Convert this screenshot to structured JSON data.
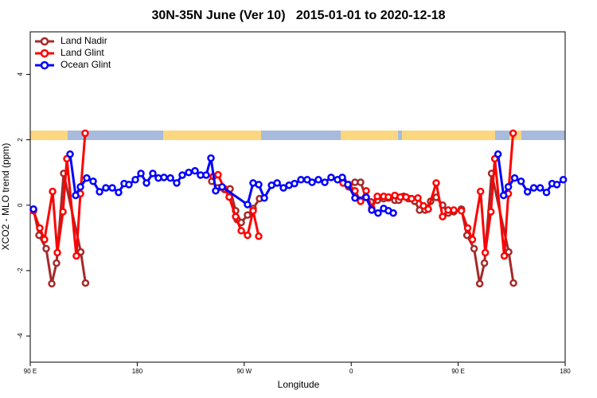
{
  "chart_data": {
    "type": "line",
    "title": "30N-35N June (Ver 10)   2015-01-01 to 2020-12-18",
    "x_label": "Longitude",
    "y_label": "XCO2 - MLO trend (ppm)",
    "xlim": [
      90,
      540
    ],
    "ylim": [
      -4.8,
      5.3
    ],
    "xticks": [
      {
        "value": 90,
        "label": "90 E"
      },
      {
        "value": 180,
        "label": "180"
      },
      {
        "value": 270,
        "label": "90 W"
      },
      {
        "value": 360,
        "label": "0"
      },
      {
        "value": 450,
        "label": "90 E"
      },
      {
        "value": 540,
        "label": "180"
      }
    ],
    "yticks": [
      -4,
      -2,
      0,
      2,
      4
    ],
    "legend": "top-left",
    "grid": false,
    "series": [
      {
        "name": "Land Nadir",
        "color": "#a52a2a",
        "x": [
          92.7,
          97.4,
          103.4,
          108.1,
          112.1,
          118.1,
          132.5,
          136.5,
          null,
          242.7,
          248,
          253.4,
          258.1,
          262.8,
          264.1,
          267.5,
          272.8,
          277.5,
          282.9,
          null,
          353.2,
          357.9,
          363.2,
          367.9,
          372.6,
          376.6,
          382,
          387.3,
          391.3,
          396.7,
          400,
          404.1,
          408.1,
          413.4,
          417.5,
          422.2,
          426.8,
          431.5,
          436.9,
          441.6,
          446.3,
          452.7,
          457.4,
          463.4,
          468.1,
          472.1,
          478.1,
          492.5,
          496.5
        ],
        "values": [
          -0.12,
          -0.92,
          -1.33,
          -2.4,
          -1.77,
          0.97,
          -1.43,
          -2.38,
          null,
          0.73,
          0.53,
          0.48,
          0.5,
          -0.17,
          -0.44,
          -0.53,
          -0.3,
          -0.1,
          0.2,
          null,
          0.75,
          0.56,
          0.7,
          0.7,
          0.24,
          0.1,
          0.15,
          0.2,
          0.22,
          0.15,
          0.15,
          0.27,
          0.2,
          0.12,
          -0.15,
          -0.15,
          0.12,
          0.24,
          0,
          -0.24,
          -0.2,
          -0.12,
          -0.92,
          -1.33,
          -2.4,
          -1.77,
          0.97,
          -1.43,
          -2.38
        ]
      },
      {
        "name": "Land Glint",
        "color": "#ff0000",
        "x": [
          92.7,
          98,
          102,
          108.8,
          112.8,
          117.5,
          120.8,
          128.8,
          132.2,
          136.2,
          null,
          244,
          248,
          253.4,
          257.4,
          262.8,
          267.5,
          272.8,
          277.5,
          282.2,
          null,
          353.2,
          357.9,
          363.2,
          367.9,
          372.6,
          377.3,
          382,
          387.3,
          391.3,
          396.7,
          401.4,
          406.1,
          410.8,
          416.1,
          420.8,
          424.8,
          431.5,
          436.9,
          441.6,
          446.3,
          452.7,
          458,
          462,
          468.8,
          472.8,
          477.5,
          480.8,
          488.8,
          492.2,
          496.2
        ],
        "values": [
          -0.17,
          -0.7,
          -1.05,
          0.42,
          -1.45,
          -0.2,
          1.42,
          -1.55,
          0.35,
          2.2,
          null,
          0.88,
          0.93,
          0.5,
          0.25,
          -0.35,
          -0.78,
          -0.92,
          -0.17,
          -0.95,
          null,
          0.68,
          0.63,
          0.44,
          0.12,
          0.44,
          -0.1,
          0.27,
          0.27,
          0.25,
          0.3,
          0.25,
          0.25,
          0.2,
          0.22,
          -0.02,
          -0.12,
          0.68,
          -0.35,
          -0.15,
          -0.15,
          -0.17,
          -0.7,
          -1.05,
          0.42,
          -1.45,
          -0.2,
          1.42,
          -1.55,
          0.35,
          2.2
        ]
      },
      {
        "name": "Ocean Glint",
        "color": "#0000ff",
        "x": [
          92.7,
          null,
          123.5,
          128.2,
          132.2,
          137.5,
          142.9,
          148.3,
          153.6,
          159,
          164.3,
          169,
          173,
          178.4,
          183.1,
          187.8,
          193.1,
          197.8,
          202.5,
          207.9,
          213.2,
          217.9,
          223.3,
          228.6,
          233.3,
          238,
          242,
          246,
          251.4,
          272.8,
          277.5,
          282.2,
          286.9,
          293,
          297.7,
          303,
          307.7,
          312.3,
          317.7,
          323,
          327.1,
          332.4,
          337.8,
          343.1,
          348.5,
          352.5,
          357.2,
          363.2,
          372.6,
          377.3,
          382.6,
          387.3,
          391.3,
          395.4,
          null,
          483.5,
          488.2,
          492.2,
          497.5,
          502.9,
          508.3,
          513.6,
          519,
          524.3,
          529,
          533,
          538.4
        ],
        "values": [
          -0.12,
          null,
          1.56,
          0.3,
          0.56,
          0.83,
          0.73,
          0.41,
          0.53,
          0.53,
          0.39,
          0.66,
          0.63,
          0.78,
          0.97,
          0.68,
          0.97,
          0.83,
          0.85,
          0.83,
          0.68,
          0.92,
          1.0,
          1.05,
          0.92,
          0.92,
          1.44,
          0.44,
          0.56,
          0.02,
          0.68,
          0.63,
          0.22,
          0.61,
          0.68,
          0.53,
          0.61,
          0.66,
          0.78,
          0.78,
          0.7,
          0.78,
          0.7,
          0.85,
          0.78,
          0.85,
          0.63,
          0.22,
          0.24,
          -0.15,
          -0.24,
          -0.1,
          -0.17,
          -0.24,
          null,
          1.56,
          0.3,
          0.56,
          0.83,
          0.73,
          0.41,
          0.53,
          0.53,
          0.39,
          0.66,
          0.63,
          0.78
        ]
      }
    ]
  }
}
